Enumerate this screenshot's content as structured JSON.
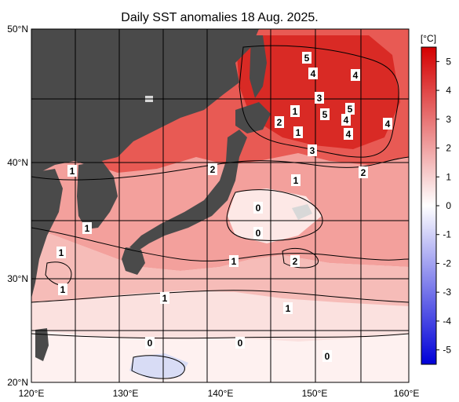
{
  "title": "Daily SST anomalies 18 Aug. 2025.",
  "lat_labels": [
    "50°N",
    "40°N",
    "30°N",
    "20°N"
  ],
  "lon_labels": [
    "120°E",
    "130°E",
    "140°E",
    "150°E",
    "160°E"
  ],
  "colorbar": {
    "unit": "[°C]",
    "ticks": [
      "5",
      "4",
      "3",
      "2",
      "1",
      "0",
      "-1",
      "-2",
      "-3",
      "-4",
      "-5"
    ],
    "max_color": "#d40000",
    "mid_color": "#ffffff",
    "min_color": "#0000d8"
  },
  "colors": {
    "land": "#4a4a4a",
    "grid": "#000000",
    "ice_or_missing": "#d8d8d8"
  },
  "contour_labels": [
    {
      "text": "5"
    },
    {
      "text": "4"
    },
    {
      "text": "4"
    },
    {
      "text": "3"
    },
    {
      "text": "1"
    },
    {
      "text": "5"
    },
    {
      "text": "4"
    },
    {
      "text": "4"
    },
    {
      "text": "2"
    },
    {
      "text": "5"
    },
    {
      "text": "4"
    },
    {
      "text": "3"
    },
    {
      "text": "1"
    },
    {
      "text": "2"
    },
    {
      "text": "1"
    },
    {
      "text": "2"
    },
    {
      "text": "1"
    },
    {
      "text": "0"
    },
    {
      "text": "0"
    },
    {
      "text": "1"
    },
    {
      "text": "1"
    },
    {
      "text": "1"
    },
    {
      "text": "2"
    },
    {
      "text": "1"
    },
    {
      "text": "1"
    },
    {
      "text": "1"
    },
    {
      "text": "0"
    },
    {
      "text": "0"
    },
    {
      "text": "0"
    }
  ]
}
